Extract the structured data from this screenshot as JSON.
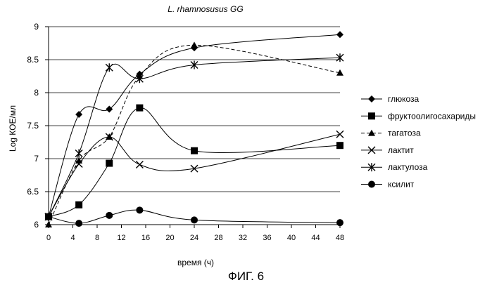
{
  "figure_caption": "ФИГ. 6",
  "chart_data": {
    "type": "line",
    "title": "L. rhamnosusus GG",
    "xlabel": "время (ч)",
    "ylabel": "Log КОЕ/мл",
    "xlim": [
      0,
      48
    ],
    "ylim": [
      6,
      9
    ],
    "xticks": [
      0,
      4,
      8,
      12,
      16,
      20,
      24,
      28,
      32,
      36,
      40,
      44,
      48
    ],
    "yticks": [
      6,
      6.5,
      7,
      7.5,
      8,
      8.5,
      9
    ],
    "ytick_labels": [
      "6",
      "6.5",
      "7",
      "7.5",
      "8",
      "8.5",
      "9"
    ],
    "grid": "horizontal",
    "legend_position": "right",
    "series": [
      {
        "name": "глюкоза",
        "marker": "diamond",
        "line": "solid",
        "x": [
          0,
          5,
          10,
          15,
          24,
          48
        ],
        "y": [
          6.12,
          7.67,
          7.75,
          8.28,
          8.68,
          8.88
        ]
      },
      {
        "name": "фруктоолигосахариды",
        "marker": "square",
        "line": "solid",
        "x": [
          0,
          5,
          10,
          15,
          24,
          48
        ],
        "y": [
          6.12,
          6.3,
          6.93,
          7.77,
          7.12,
          7.2
        ]
      },
      {
        "name": "тагатоза",
        "marker": "triangle",
        "line": "dashed",
        "x": [
          0,
          5,
          10,
          15,
          24,
          48
        ],
        "y": [
          6.0,
          6.97,
          7.33,
          8.25,
          8.72,
          8.3
        ]
      },
      {
        "name": "лактит",
        "marker": "x",
        "line": "solid",
        "x": [
          0,
          5,
          10,
          15,
          24,
          48
        ],
        "y": [
          6.12,
          6.92,
          7.33,
          6.91,
          6.85,
          7.37
        ]
      },
      {
        "name": "лактулоза",
        "marker": "asterisk",
        "line": "solid",
        "x": [
          0,
          5,
          10,
          15,
          24,
          48
        ],
        "y": [
          6.12,
          7.08,
          8.38,
          8.21,
          8.42,
          8.53
        ]
      },
      {
        "name": "ксилит",
        "marker": "circle",
        "line": "solid",
        "x": [
          0,
          5,
          10,
          15,
          24,
          48
        ],
        "y": [
          6.12,
          6.02,
          6.14,
          6.22,
          6.07,
          6.03
        ]
      }
    ]
  }
}
